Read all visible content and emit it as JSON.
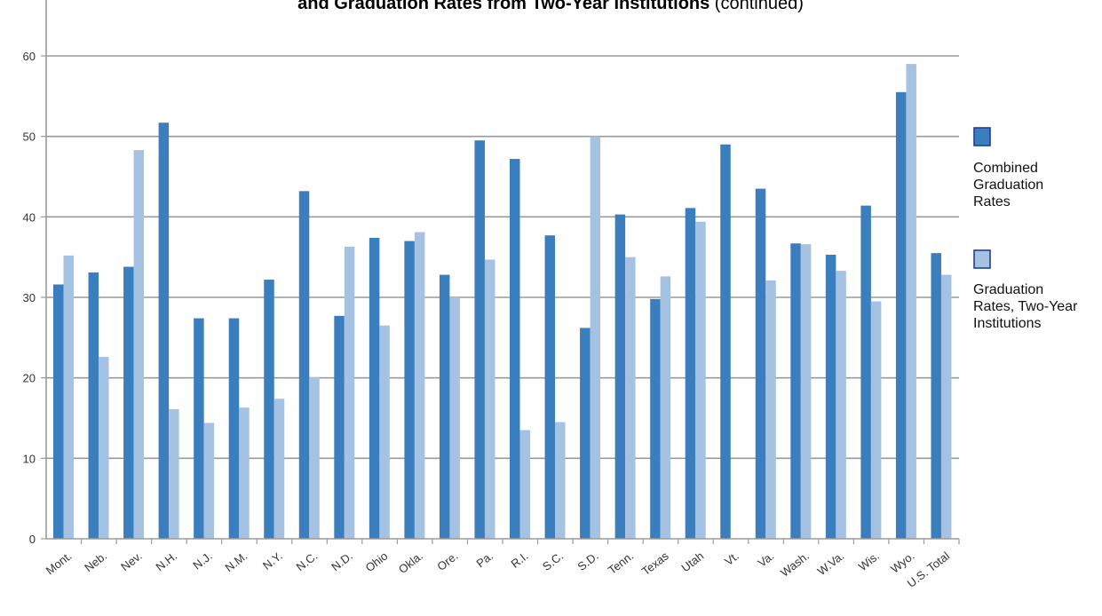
{
  "chart_data": {
    "type": "bar",
    "title": {
      "bold": "and Graduation Rates from Two-Year Institutions",
      "suffix": " (continued)"
    },
    "categories": [
      "Mont.",
      "Neb.",
      "Nev.",
      "N.H.",
      "N.J.",
      "N.M.",
      "N.Y.",
      "N.C.",
      "N.D.",
      "Ohio",
      "Okla.",
      "Ore.",
      "Pa.",
      "R.I.",
      "S.C.",
      "S.D.",
      "Tenn.",
      "Texas",
      "Utah",
      "Vt.",
      "Va.",
      "Wash.",
      "W.Va.",
      "Wis.",
      "Wyo.",
      "U.S. Total"
    ],
    "series": [
      {
        "name": "Combined Graduation Rates",
        "legend_lines": [
          "Combined",
          "Graduation",
          "Rates"
        ],
        "color": "#3a7ebd",
        "values": [
          31.6,
          33.1,
          33.8,
          51.7,
          27.4,
          27.4,
          32.2,
          43.2,
          27.7,
          37.4,
          37.0,
          32.8,
          49.5,
          47.2,
          37.7,
          26.2,
          40.3,
          29.8,
          41.1,
          49.0,
          43.5,
          36.7,
          35.3,
          41.4,
          55.5,
          35.5
        ]
      },
      {
        "name": "Graduation Rates, Two-Year Institutions",
        "legend_lines": [
          "Graduation",
          "Rates, Two-Year",
          "Institutions"
        ],
        "color": "#a5c2e2",
        "values": [
          35.2,
          22.6,
          48.3,
          16.1,
          14.4,
          16.3,
          17.4,
          20.1,
          36.3,
          26.5,
          38.1,
          30.0,
          34.7,
          13.5,
          14.5,
          50.0,
          35.0,
          32.6,
          39.4,
          null,
          32.1,
          36.6,
          33.3,
          29.5,
          59.0,
          32.8
        ]
      }
    ],
    "ylim": [
      0,
      65
    ],
    "yticks": [
      0,
      10,
      20,
      30,
      40,
      50,
      60
    ],
    "grid": true,
    "legend_position": "right",
    "xlabel": "",
    "ylabel": ""
  }
}
